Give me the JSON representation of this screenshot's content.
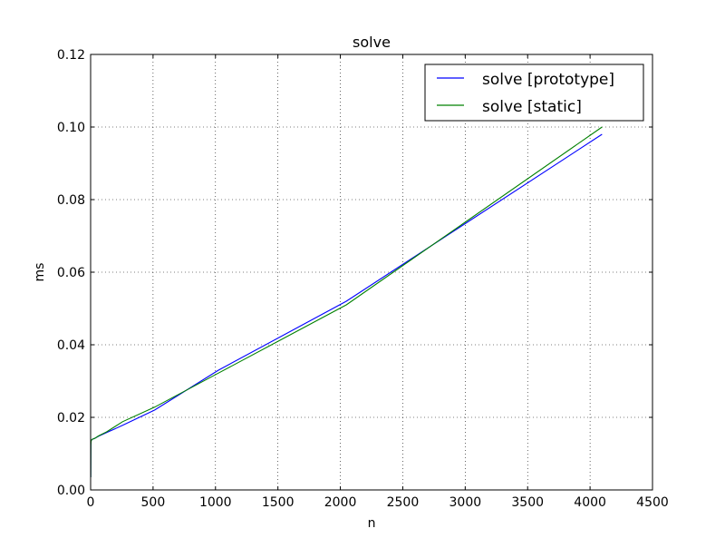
{
  "chart_data": {
    "type": "line",
    "title": "solve",
    "xlabel": "n",
    "ylabel": "ms",
    "xlim": [
      0,
      4500
    ],
    "ylim": [
      0,
      0.12
    ],
    "xticks": [
      0,
      500,
      1000,
      1500,
      2000,
      2500,
      3000,
      3500,
      4000,
      4500
    ],
    "xtick_labels": [
      "0",
      "500",
      "1000",
      "1500",
      "2000",
      "2500",
      "3000",
      "3500",
      "4000",
      "4500"
    ],
    "yticks": [
      0,
      0.02,
      0.04,
      0.06,
      0.08,
      0.1,
      0.12
    ],
    "ytick_labels": [
      "0.00",
      "0.02",
      "0.04",
      "0.06",
      "0.08",
      "0.10",
      "0.12"
    ],
    "grid": true,
    "legend_position": "top-right",
    "series": [
      {
        "name": "solve [prototype]",
        "color": "#0000ff",
        "x": [
          1,
          2,
          4,
          8,
          16,
          32,
          64,
          128,
          256,
          512,
          1024,
          2048,
          4096
        ],
        "y": [
          0.0035,
          0.0125,
          0.0135,
          0.0138,
          0.014,
          0.0142,
          0.0148,
          0.0158,
          0.0178,
          0.022,
          0.033,
          0.052,
          0.098
        ]
      },
      {
        "name": "solve [static]",
        "color": "#008000",
        "x": [
          1,
          2,
          4,
          8,
          16,
          32,
          64,
          128,
          256,
          512,
          1024,
          2048,
          4096
        ],
        "y": [
          0.0035,
          0.0125,
          0.0135,
          0.0138,
          0.014,
          0.0142,
          0.0149,
          0.016,
          0.0188,
          0.0228,
          0.0322,
          0.051,
          0.1
        ]
      }
    ]
  }
}
